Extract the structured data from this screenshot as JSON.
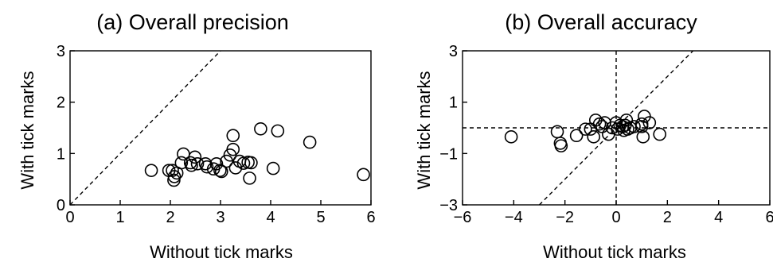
{
  "chart_data": [
    {
      "type": "scatter",
      "title": "(a) Overall precision",
      "xlabel": "Without tick marks",
      "ylabel": "With tick marks",
      "xlim": [
        0,
        6
      ],
      "ylim": [
        0,
        3
      ],
      "xticks": [
        0,
        1,
        2,
        3,
        4,
        5,
        6
      ],
      "yticks": [
        0,
        1,
        2,
        3
      ],
      "reference_lines": [
        {
          "name": "identity",
          "style": "dashed",
          "from": [
            0,
            0
          ],
          "to": [
            3,
            3
          ]
        }
      ],
      "points": [
        [
          1.62,
          0.67
        ],
        [
          1.97,
          0.67
        ],
        [
          2.04,
          0.67
        ],
        [
          2.08,
          0.55
        ],
        [
          2.07,
          0.48
        ],
        [
          2.13,
          0.62
        ],
        [
          2.22,
          0.82
        ],
        [
          2.26,
          0.99
        ],
        [
          2.4,
          0.82
        ],
        [
          2.42,
          0.77
        ],
        [
          2.49,
          0.93
        ],
        [
          2.54,
          0.8
        ],
        [
          2.7,
          0.8
        ],
        [
          2.73,
          0.74
        ],
        [
          2.86,
          0.7
        ],
        [
          2.92,
          0.8
        ],
        [
          2.99,
          0.67
        ],
        [
          3.02,
          0.65
        ],
        [
          3.12,
          0.85
        ],
        [
          3.19,
          0.97
        ],
        [
          3.25,
          1.08
        ],
        [
          3.25,
          1.35
        ],
        [
          3.3,
          0.72
        ],
        [
          3.38,
          0.85
        ],
        [
          3.46,
          0.81
        ],
        [
          3.55,
          0.83
        ],
        [
          3.58,
          0.52
        ],
        [
          3.61,
          0.82
        ],
        [
          3.8,
          1.48
        ],
        [
          4.05,
          0.71
        ],
        [
          4.14,
          1.44
        ],
        [
          4.78,
          1.22
        ],
        [
          5.85,
          0.59
        ]
      ]
    },
    {
      "type": "scatter",
      "title": "(b) Overall accuracy",
      "xlabel": "Without tick marks",
      "ylabel": "With tick marks",
      "xlim": [
        -6,
        6
      ],
      "ylim": [
        -3,
        3
      ],
      "xticks": [
        -6,
        -4,
        -2,
        0,
        2,
        4,
        6
      ],
      "yticks": [
        -3,
        -1,
        1,
        3
      ],
      "reference_lines": [
        {
          "name": "identity",
          "style": "dashed",
          "from": [
            -3,
            -3
          ],
          "to": [
            3,
            3
          ]
        },
        {
          "name": "zero-x",
          "style": "dashed",
          "from": [
            0,
            -3
          ],
          "to": [
            0,
            3
          ]
        },
        {
          "name": "zero-y",
          "style": "dashed",
          "from": [
            -6,
            0
          ],
          "to": [
            6,
            0
          ]
        }
      ],
      "points": [
        [
          -4.1,
          -0.35
        ],
        [
          -2.3,
          -0.15
        ],
        [
          -2.18,
          -0.6
        ],
        [
          -2.15,
          -0.7
        ],
        [
          -1.55,
          -0.3
        ],
        [
          -1.2,
          -0.05
        ],
        [
          -1.0,
          -0.05
        ],
        [
          -0.88,
          -0.35
        ],
        [
          -0.8,
          0.3
        ],
        [
          -0.65,
          0.15
        ],
        [
          -0.55,
          0.05
        ],
        [
          -0.45,
          0.2
        ],
        [
          -0.3,
          -0.25
        ],
        [
          -0.15,
          0.0
        ],
        [
          0.0,
          0.2
        ],
        [
          0.05,
          -0.05
        ],
        [
          0.15,
          0.1
        ],
        [
          0.25,
          0.05
        ],
        [
          0.3,
          -0.1
        ],
        [
          0.35,
          0.1
        ],
        [
          0.45,
          -0.05
        ],
        [
          0.55,
          0.0
        ],
        [
          0.7,
          0.05
        ],
        [
          1.0,
          0.05
        ],
        [
          1.05,
          -0.35
        ],
        [
          1.1,
          0.45
        ],
        [
          1.3,
          0.2
        ],
        [
          1.7,
          -0.25
        ],
        [
          1.0,
          0.15
        ],
        [
          0.4,
          0.3
        ]
      ]
    }
  ]
}
